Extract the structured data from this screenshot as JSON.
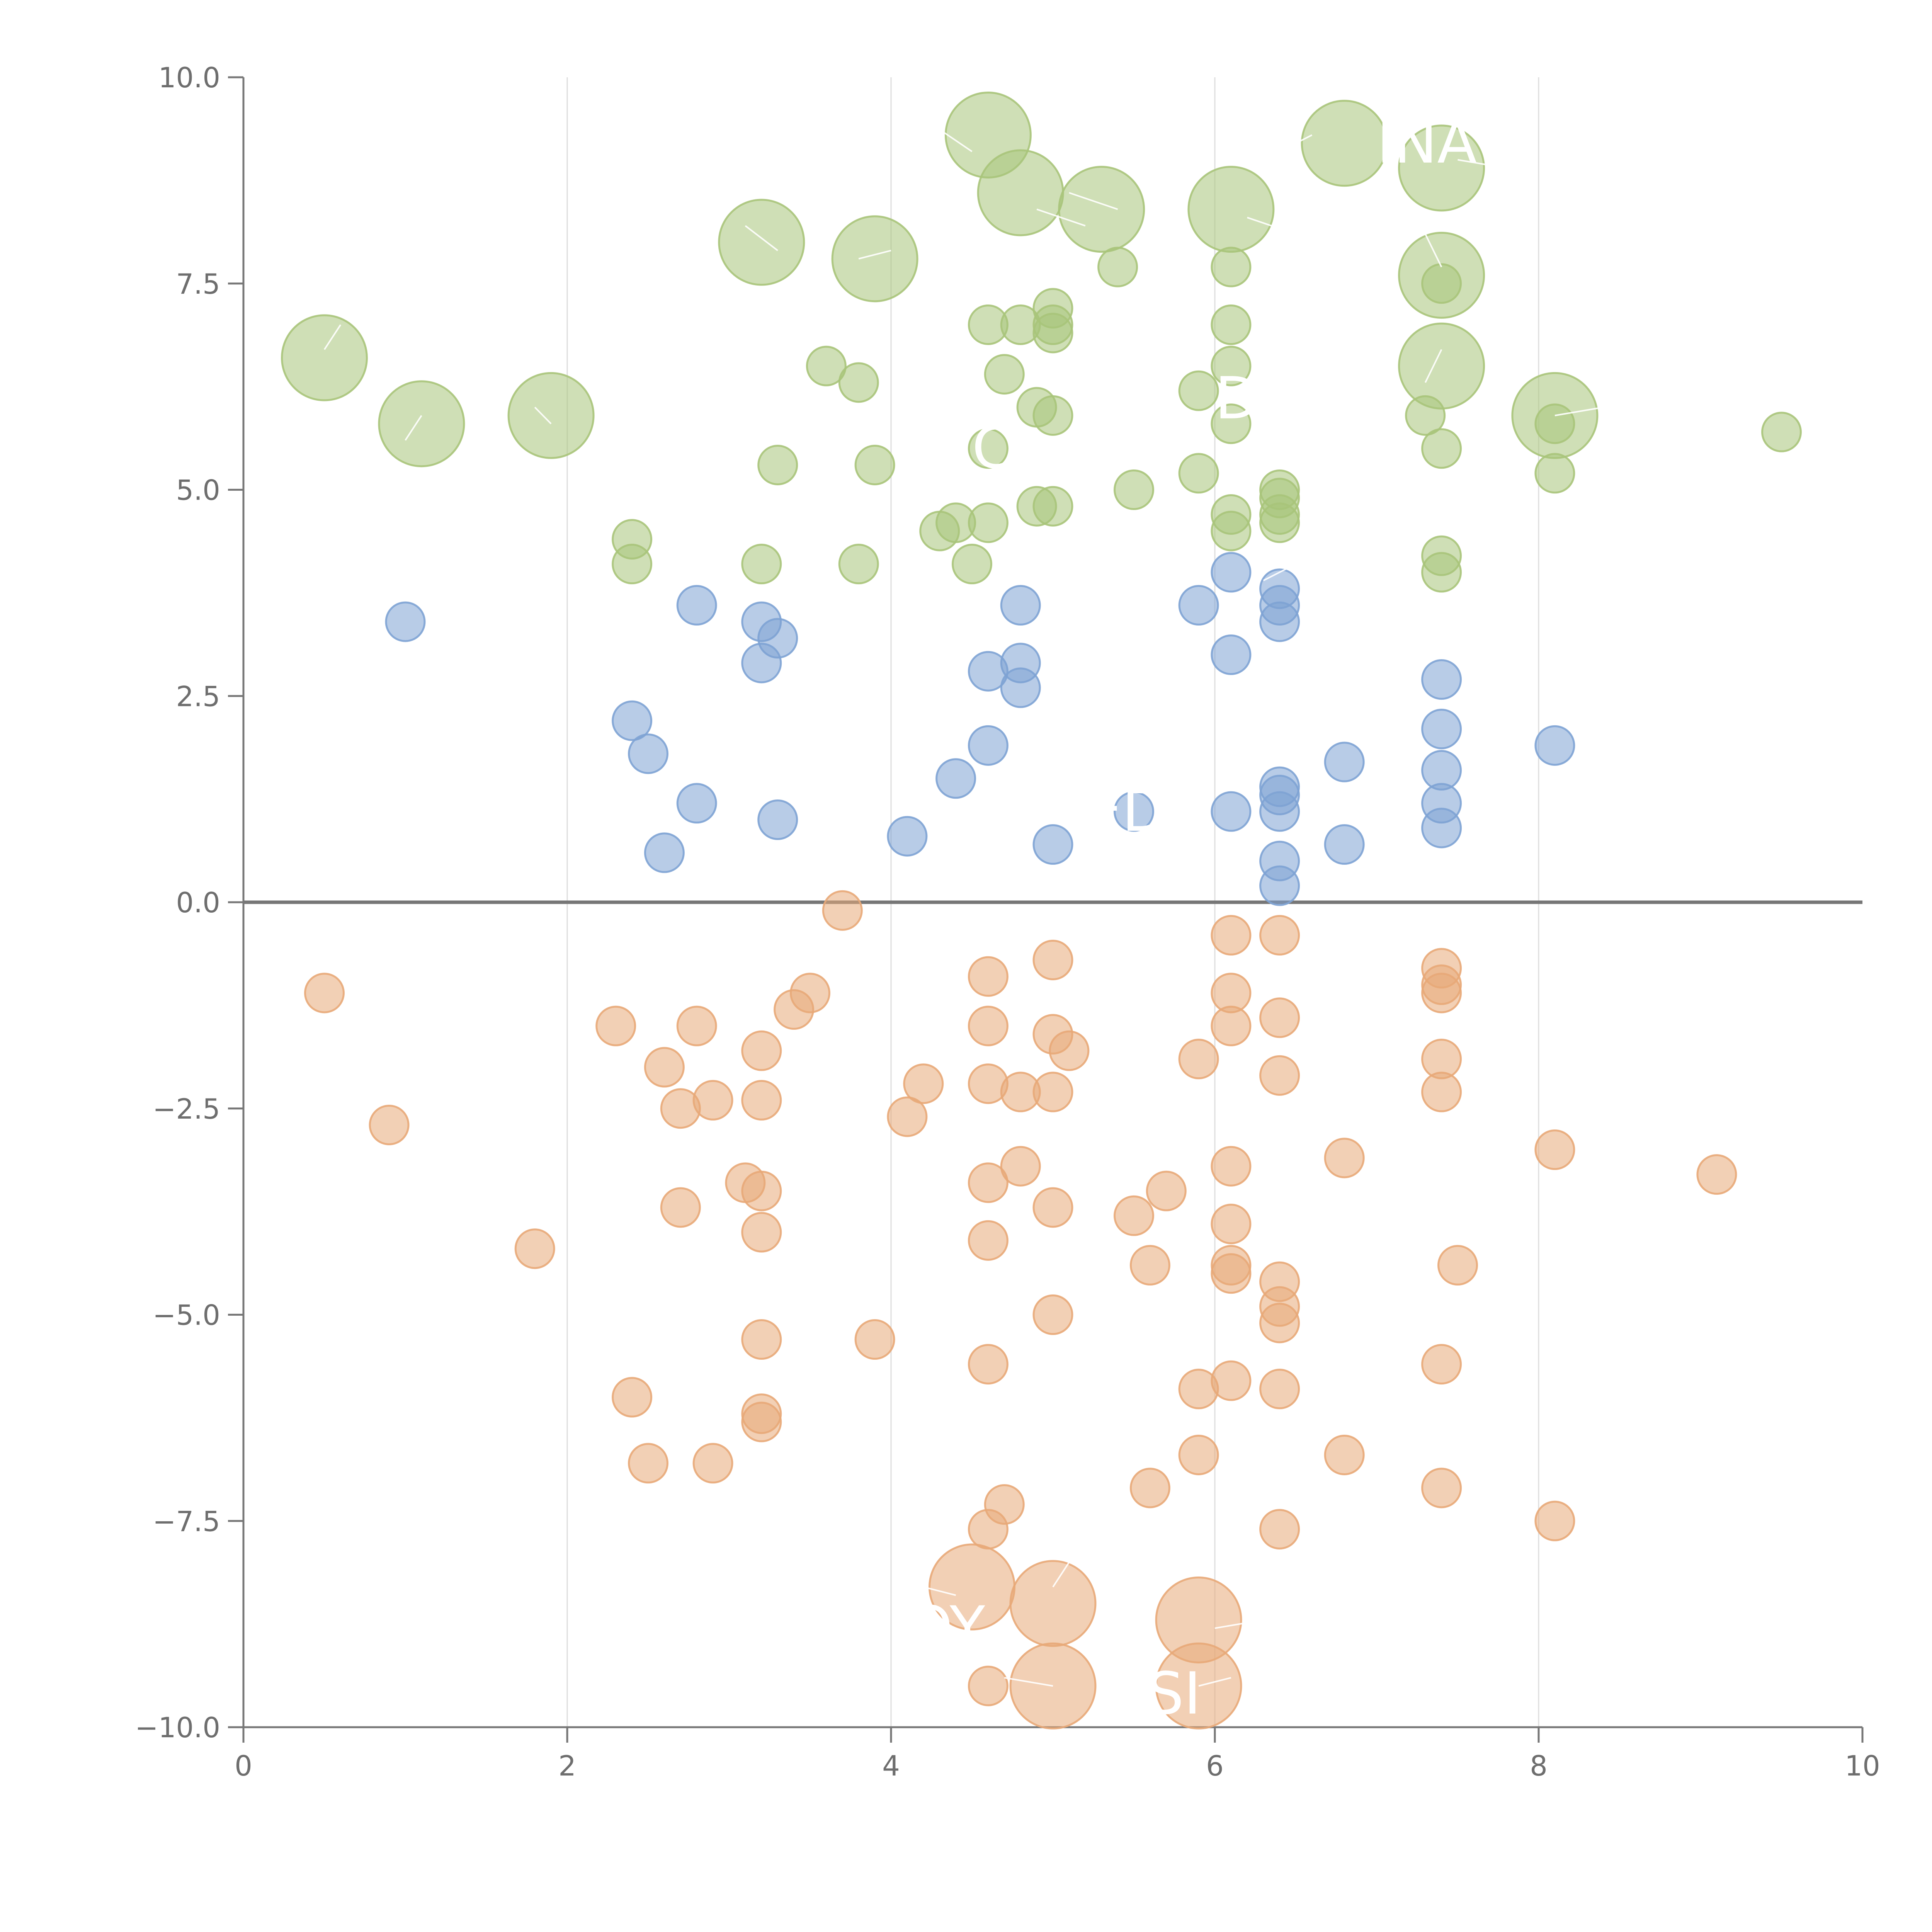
{
  "chart_data": {
    "type": "scatter",
    "title": "",
    "xlabel": "",
    "ylabel": "",
    "xlim": [
      0,
      10
    ],
    "ylim": [
      -10,
      10
    ],
    "x_ticks": [
      "0",
      "2",
      "4",
      "6",
      "8",
      "10"
    ],
    "y_ticks": [
      "10.0",
      "7.5",
      "5.0",
      "2.5",
      "0.0",
      "−2.5",
      "−5.0",
      "−7.5",
      "−10.0"
    ],
    "grid": "vertical",
    "legend": "none",
    "series": [
      {
        "color": "#a8c47a",
        "points": [
          [
            4.6,
            9.3,
            2
          ],
          [
            6.8,
            9.2,
            2
          ],
          [
            7.4,
            8.9,
            2
          ],
          [
            4.8,
            8.6,
            2
          ],
          [
            5.3,
            8.4,
            2
          ],
          [
            6.1,
            8.4,
            2
          ],
          [
            3.2,
            8.0,
            2
          ],
          [
            3.9,
            7.8,
            2
          ],
          [
            7.4,
            7.6,
            2
          ],
          [
            0.5,
            6.6,
            2
          ],
          [
            7.4,
            6.5,
            2
          ],
          [
            1.1,
            5.8,
            2
          ],
          [
            1.9,
            5.9,
            2
          ],
          [
            8.1,
            5.9,
            2
          ],
          [
            5.4,
            7.7,
            1
          ],
          [
            6.1,
            7.7,
            1
          ],
          [
            7.4,
            7.5,
            1
          ],
          [
            5.0,
            7.2,
            1
          ],
          [
            4.6,
            7.0,
            1
          ],
          [
            4.8,
            7.0,
            1
          ],
          [
            5.0,
            7.0,
            1
          ],
          [
            6.1,
            7.0,
            1
          ],
          [
            5.0,
            6.9,
            1
          ],
          [
            3.6,
            6.5,
            1
          ],
          [
            6.1,
            6.5,
            1
          ],
          [
            3.8,
            6.3,
            1
          ],
          [
            4.7,
            6.4,
            1
          ],
          [
            5.9,
            6.2,
            1
          ],
          [
            4.9,
            6.0,
            1
          ],
          [
            5.0,
            5.9,
            1
          ],
          [
            7.3,
            5.9,
            1
          ],
          [
            6.1,
            5.8,
            1
          ],
          [
            8.1,
            5.8,
            1
          ],
          [
            9.5,
            5.7,
            1
          ],
          [
            4.6,
            5.5,
            1
          ],
          [
            7.4,
            5.5,
            1
          ],
          [
            3.3,
            5.3,
            1
          ],
          [
            3.9,
            5.3,
            1
          ],
          [
            5.9,
            5.2,
            1
          ],
          [
            8.1,
            5.2,
            1
          ],
          [
            5.5,
            5.0,
            1
          ],
          [
            6.4,
            5.0,
            1
          ],
          [
            6.4,
            4.9,
            1
          ],
          [
            4.9,
            4.8,
            1
          ],
          [
            5.0,
            4.8,
            1
          ],
          [
            6.1,
            4.7,
            1
          ],
          [
            6.4,
            4.7,
            1
          ],
          [
            4.4,
            4.6,
            1
          ],
          [
            4.6,
            4.6,
            1
          ],
          [
            4.3,
            4.5,
            1
          ],
          [
            6.1,
            4.5,
            1
          ],
          [
            6.4,
            4.6,
            1
          ],
          [
            2.4,
            4.4,
            1
          ],
          [
            7.4,
            4.2,
            1
          ],
          [
            3.2,
            4.1,
            1
          ],
          [
            3.8,
            4.1,
            1
          ],
          [
            4.5,
            4.1,
            1
          ],
          [
            2.4,
            4.1,
            1
          ],
          [
            7.4,
            4.0,
            1
          ]
        ]
      },
      {
        "color": "#7ea3d4",
        "points": [
          [
            1.0,
            3.4,
            1
          ],
          [
            2.8,
            3.6,
            1
          ],
          [
            3.2,
            3.4,
            1
          ],
          [
            3.3,
            3.2,
            1
          ],
          [
            3.2,
            2.9,
            1
          ],
          [
            4.8,
            3.6,
            1
          ],
          [
            5.9,
            3.6,
            1
          ],
          [
            6.1,
            4.0,
            1
          ],
          [
            6.4,
            3.8,
            1
          ],
          [
            6.4,
            3.6,
            1
          ],
          [
            6.4,
            3.4,
            1
          ],
          [
            6.1,
            3.0,
            1
          ],
          [
            4.8,
            2.9,
            1
          ],
          [
            4.6,
            2.8,
            1
          ],
          [
            4.8,
            2.6,
            1
          ],
          [
            7.4,
            2.7,
            1
          ],
          [
            2.4,
            2.2,
            1
          ],
          [
            2.5,
            1.8,
            1
          ],
          [
            4.6,
            1.9,
            1
          ],
          [
            7.4,
            2.1,
            1
          ],
          [
            8.1,
            1.9,
            1
          ],
          [
            6.8,
            1.7,
            1
          ],
          [
            7.4,
            1.6,
            1
          ],
          [
            4.4,
            1.5,
            1
          ],
          [
            6.4,
            1.4,
            1
          ],
          [
            6.4,
            1.3,
            1
          ],
          [
            6.4,
            1.1,
            1
          ],
          [
            7.4,
            1.2,
            1
          ],
          [
            2.8,
            1.2,
            1
          ],
          [
            3.3,
            1.0,
            1
          ],
          [
            6.1,
            1.1,
            1
          ],
          [
            5.5,
            1.1,
            1
          ],
          [
            7.4,
            0.9,
            1
          ],
          [
            4.1,
            0.8,
            1
          ],
          [
            5.0,
            0.7,
            1
          ],
          [
            6.8,
            0.7,
            1
          ],
          [
            2.6,
            0.6,
            1
          ],
          [
            6.4,
            0.5,
            1
          ],
          [
            6.4,
            0.2,
            1
          ]
        ]
      },
      {
        "color": "#e8a978",
        "points": [
          [
            3.7,
            -0.1,
            1
          ],
          [
            6.1,
            -0.4,
            1
          ],
          [
            6.4,
            -0.4,
            1
          ],
          [
            5.0,
            -0.7,
            1
          ],
          [
            7.4,
            -0.8,
            1
          ],
          [
            4.6,
            -0.9,
            1
          ],
          [
            7.4,
            -1.0,
            1
          ],
          [
            7.4,
            -1.1,
            1
          ],
          [
            0.5,
            -1.1,
            1
          ],
          [
            3.5,
            -1.1,
            1
          ],
          [
            6.1,
            -1.1,
            1
          ],
          [
            3.4,
            -1.3,
            1
          ],
          [
            2.3,
            -1.5,
            1
          ],
          [
            2.8,
            -1.5,
            1
          ],
          [
            4.6,
            -1.5,
            1
          ],
          [
            6.1,
            -1.5,
            1
          ],
          [
            6.4,
            -1.4,
            1
          ],
          [
            5.0,
            -1.6,
            1
          ],
          [
            5.1,
            -1.8,
            1
          ],
          [
            3.2,
            -1.8,
            1
          ],
          [
            2.6,
            -2.0,
            1
          ],
          [
            5.9,
            -1.9,
            1
          ],
          [
            7.4,
            -1.9,
            1
          ],
          [
            6.4,
            -2.1,
            1
          ],
          [
            4.6,
            -2.2,
            1
          ],
          [
            4.2,
            -2.2,
            1
          ],
          [
            5.0,
            -2.3,
            1
          ],
          [
            4.8,
            -2.3,
            1
          ],
          [
            7.4,
            -2.3,
            1
          ],
          [
            2.9,
            -2.4,
            1
          ],
          [
            3.2,
            -2.4,
            1
          ],
          [
            2.7,
            -2.5,
            1
          ],
          [
            4.1,
            -2.6,
            1
          ],
          [
            0.9,
            -2.7,
            1
          ],
          [
            6.8,
            -3.1,
            1
          ],
          [
            8.1,
            -3.0,
            1
          ],
          [
            6.1,
            -3.2,
            1
          ],
          [
            4.8,
            -3.2,
            1
          ],
          [
            9.1,
            -3.3,
            1
          ],
          [
            3.1,
            -3.4,
            1
          ],
          [
            3.2,
            -3.5,
            1
          ],
          [
            4.6,
            -3.4,
            1
          ],
          [
            5.7,
            -3.5,
            1
          ],
          [
            2.7,
            -3.7,
            1
          ],
          [
            5.0,
            -3.7,
            1
          ],
          [
            5.5,
            -3.8,
            1
          ],
          [
            6.1,
            -3.9,
            1
          ],
          [
            3.2,
            -4.0,
            1
          ],
          [
            4.6,
            -4.1,
            1
          ],
          [
            1.8,
            -4.2,
            1
          ],
          [
            5.6,
            -4.4,
            1
          ],
          [
            6.1,
            -4.4,
            1
          ],
          [
            6.1,
            -4.5,
            1
          ],
          [
            7.5,
            -4.4,
            1
          ],
          [
            6.4,
            -4.6,
            1
          ],
          [
            6.4,
            -4.9,
            1
          ],
          [
            5.0,
            -5.0,
            1
          ],
          [
            6.4,
            -5.1,
            1
          ],
          [
            3.9,
            -5.3,
            1
          ],
          [
            3.2,
            -5.3,
            1
          ],
          [
            4.6,
            -5.6,
            1
          ],
          [
            7.4,
            -5.6,
            1
          ],
          [
            6.1,
            -5.8,
            1
          ],
          [
            5.9,
            -5.9,
            1
          ],
          [
            6.4,
            -5.9,
            1
          ],
          [
            2.4,
            -6.0,
            1
          ],
          [
            3.2,
            -6.2,
            1
          ],
          [
            3.2,
            -6.3,
            1
          ],
          [
            5.9,
            -6.7,
            1
          ],
          [
            6.8,
            -6.7,
            1
          ],
          [
            2.5,
            -6.8,
            1
          ],
          [
            2.9,
            -6.8,
            1
          ],
          [
            5.6,
            -7.1,
            1
          ],
          [
            7.4,
            -7.1,
            1
          ],
          [
            4.7,
            -7.3,
            1
          ],
          [
            4.6,
            -7.6,
            1
          ],
          [
            6.4,
            -7.6,
            1
          ],
          [
            8.1,
            -7.5,
            1
          ],
          [
            4.6,
            -9.5,
            1
          ],
          [
            4.5,
            -8.3,
            2
          ],
          [
            5.0,
            -8.5,
            2
          ],
          [
            5.9,
            -8.7,
            2
          ],
          [
            5.0,
            -9.5,
            2
          ],
          [
            5.9,
            -9.5,
            2
          ]
        ]
      }
    ],
    "annotations": [
      {
        "text": "INA",
        "x": 7.0,
        "y": 9.2
      },
      {
        "text": "D",
        "x": 6.0,
        "y": 6.1
      },
      {
        "text": "C",
        "x": 4.5,
        "y": 5.5
      },
      {
        "text": "ED",
        "x": 5.2,
        "y": 1.1
      },
      {
        "text": "OY",
        "x": 4.1,
        "y": -8.8
      },
      {
        "text": "OSI",
        "x": 5.3,
        "y": -9.6
      }
    ],
    "leader_lines": [
      {
        "from": [
          4.5,
          9.1
        ],
        "to": [
          4.2,
          9.5
        ]
      },
      {
        "from": [
          4.9,
          9.2
        ],
        "to": [
          5.1,
          9.0
        ]
      },
      {
        "from": [
          6.6,
          9.3
        ],
        "to": [
          6.5,
          9.2
        ]
      },
      {
        "from": [
          7.5,
          9.0
        ],
        "to": [
          7.8,
          8.9
        ]
      },
      {
        "from": [
          4.9,
          8.4
        ],
        "to": [
          5.2,
          8.2
        ]
      },
      {
        "from": [
          5.1,
          8.6
        ],
        "to": [
          5.4,
          8.4
        ]
      },
      {
        "from": [
          6.2,
          8.3
        ],
        "to": [
          6.5,
          8.1
        ]
      },
      {
        "from": [
          3.3,
          7.9
        ],
        "to": [
          3.1,
          8.2
        ]
      },
      {
        "from": [
          3.8,
          7.8
        ],
        "to": [
          4.0,
          7.9
        ]
      },
      {
        "from": [
          7.4,
          7.7
        ],
        "to": [
          7.3,
          8.1
        ]
      },
      {
        "from": [
          0.5,
          6.7
        ],
        "to": [
          0.6,
          7.0
        ]
      },
      {
        "from": [
          7.3,
          6.3
        ],
        "to": [
          7.4,
          6.7
        ]
      },
      {
        "from": [
          1.0,
          5.6
        ],
        "to": [
          1.1,
          5.9
        ]
      },
      {
        "from": [
          1.9,
          5.8
        ],
        "to": [
          1.8,
          6.0
        ]
      },
      {
        "from": [
          8.1,
          5.9
        ],
        "to": [
          8.4,
          6.0
        ]
      },
      {
        "from": [
          6.3,
          3.9
        ],
        "to": [
          6.5,
          4.1
        ]
      },
      {
        "from": [
          5.0,
          -8.3
        ],
        "to": [
          5.1,
          -8.0
        ]
      },
      {
        "from": [
          4.4,
          -8.4
        ],
        "to": [
          4.2,
          -8.3
        ]
      },
      {
        "from": [
          6.0,
          -8.8
        ],
        "to": [
          6.3,
          -8.7
        ]
      },
      {
        "from": [
          5.0,
          -9.5
        ],
        "to": [
          4.7,
          -9.4
        ]
      },
      {
        "from": [
          5.9,
          -9.5
        ],
        "to": [
          6.1,
          -9.4
        ]
      }
    ]
  }
}
